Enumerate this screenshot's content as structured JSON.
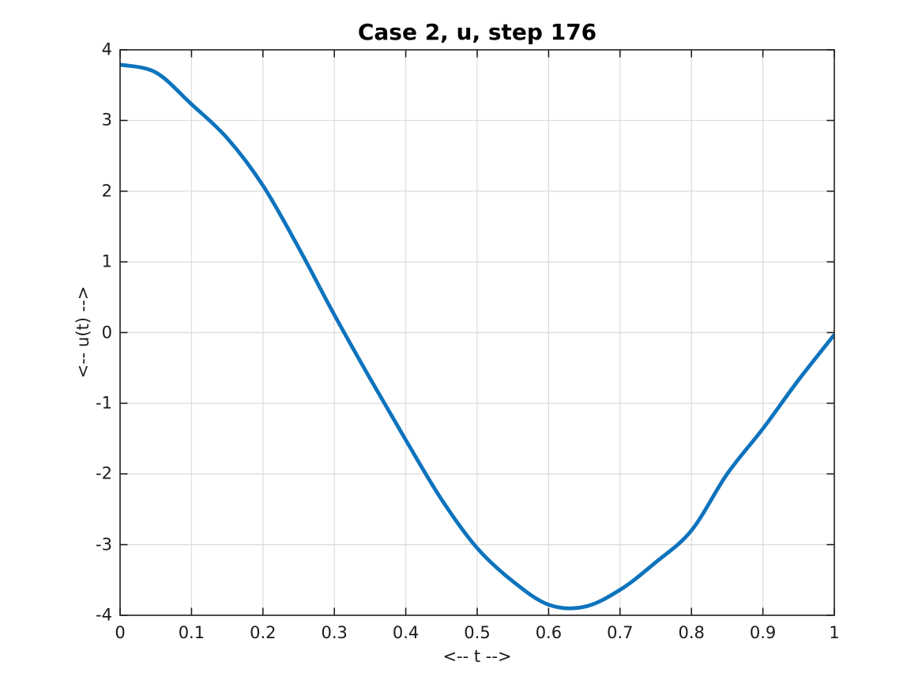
{
  "chart_data": {
    "type": "line",
    "title": "Case 2, u, step 176",
    "xlabel": "<-- t -->",
    "ylabel": "<-- u(t) -->",
    "xlim": [
      0,
      1
    ],
    "ylim": [
      -4,
      4
    ],
    "xticks": [
      0,
      0.1,
      0.2,
      0.3,
      0.4,
      0.5,
      0.6,
      0.7,
      0.8,
      0.9,
      1
    ],
    "xtick_labels": [
      "0",
      "0.1",
      "0.2",
      "0.3",
      "0.4",
      "0.5",
      "0.6",
      "0.7",
      "0.8",
      "0.9",
      "1"
    ],
    "yticks": [
      -4,
      -3,
      -2,
      -1,
      0,
      1,
      2,
      3,
      4
    ],
    "ytick_labels": [
      "-4",
      "-3",
      "-2",
      "-1",
      "0",
      "1",
      "2",
      "3",
      "4"
    ],
    "grid": true,
    "box": true,
    "tick_direction": "in",
    "legend": "none",
    "series": [
      {
        "name": "u",
        "color": "#0d73bd",
        "linewidth": 4.8,
        "x": [
          0,
          0.05,
          0.1,
          0.15,
          0.2,
          0.25,
          0.3,
          0.35,
          0.4,
          0.45,
          0.5,
          0.55,
          0.6,
          0.65,
          0.7,
          0.75,
          0.8,
          0.85,
          0.9,
          0.95,
          1
        ],
        "y": [
          3.79,
          3.68,
          3.23,
          2.75,
          2.08,
          1.2,
          0.25,
          -0.65,
          -1.52,
          -2.36,
          -3.05,
          -3.52,
          -3.85,
          -3.88,
          -3.64,
          -3.25,
          -2.8,
          -2.0,
          -1.36,
          -0.67,
          -0.03
        ]
      }
    ],
    "colors": {
      "background": "#ffffff",
      "grid": "#dcdcdc",
      "axis": "#1f1f1f",
      "tick_label": "#1a1a1a",
      "title": "#000000"
    }
  }
}
